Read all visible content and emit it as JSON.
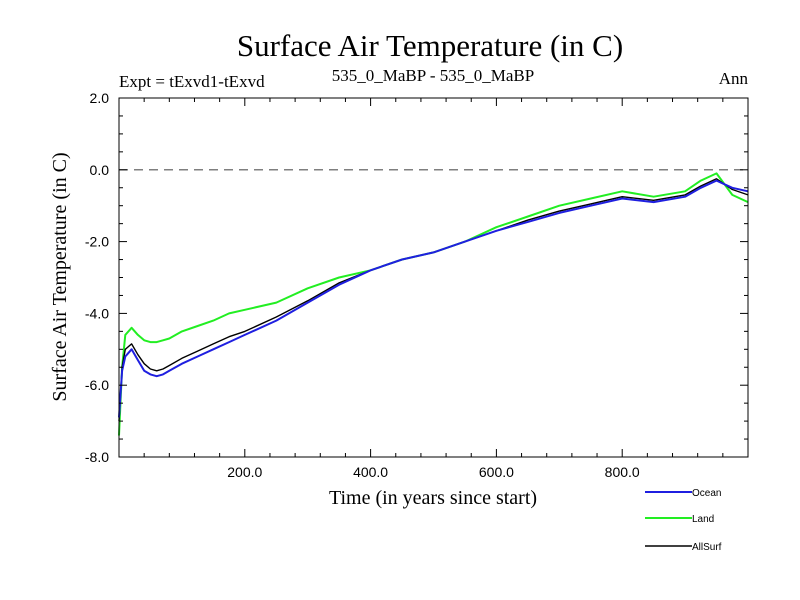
{
  "chart_data": {
    "type": "line",
    "title": "Surface Air Temperature (in C)",
    "subtitle_left": "Expt = tExvd1-tExvd",
    "subtitle_center": "535_0_MaBP - 535_0_MaBP",
    "subtitle_right": "Ann",
    "xlabel": "Time (in years since start)",
    "ylabel": "Surface Air Temperature (in C)",
    "xlim": [
      0,
      1000
    ],
    "ylim": [
      -8.0,
      2.0
    ],
    "x_ticks": [
      200,
      400,
      600,
      800
    ],
    "x_tick_labels": [
      "200.0",
      "400.0",
      "600.0",
      "800.0"
    ],
    "y_ticks": [
      -8,
      -6,
      -4,
      -2,
      0,
      2
    ],
    "y_tick_labels": [
      "-8.0",
      "-6.0",
      "-4.0",
      "-2.0",
      "0.0",
      "2.0"
    ],
    "reference_line_y": 0.0,
    "colors": {
      "ocean": "#1f1fe0",
      "land": "#22ee22",
      "allsurf": "#000000",
      "reference": "#555555"
    },
    "series": [
      {
        "name": "Ocean",
        "key": "ocean",
        "x": [
          0,
          5,
          10,
          20,
          30,
          40,
          50,
          60,
          70,
          80,
          100,
          125,
          150,
          175,
          200,
          250,
          300,
          350,
          400,
          450,
          500,
          550,
          600,
          650,
          700,
          750,
          800,
          850,
          900,
          925,
          950,
          975,
          1000
        ],
        "values": [
          -6.9,
          -5.6,
          -5.2,
          -5.0,
          -5.3,
          -5.6,
          -5.7,
          -5.75,
          -5.7,
          -5.6,
          -5.4,
          -5.2,
          -5.0,
          -4.8,
          -4.6,
          -4.2,
          -3.7,
          -3.2,
          -2.8,
          -2.5,
          -2.3,
          -2.0,
          -1.7,
          -1.45,
          -1.2,
          -1.0,
          -0.8,
          -0.9,
          -0.75,
          -0.5,
          -0.3,
          -0.5,
          -0.6
        ]
      },
      {
        "name": "Land",
        "key": "land",
        "x": [
          0,
          5,
          10,
          20,
          30,
          40,
          50,
          60,
          70,
          80,
          100,
          125,
          150,
          175,
          200,
          250,
          300,
          350,
          400,
          450,
          500,
          550,
          600,
          650,
          700,
          750,
          800,
          850,
          900,
          925,
          950,
          975,
          1000
        ],
        "values": [
          -7.4,
          -5.5,
          -4.6,
          -4.4,
          -4.6,
          -4.75,
          -4.8,
          -4.8,
          -4.75,
          -4.7,
          -4.5,
          -4.35,
          -4.2,
          -4.0,
          -3.9,
          -3.7,
          -3.3,
          -3.0,
          -2.8,
          -2.5,
          -2.3,
          -2.0,
          -1.6,
          -1.3,
          -1.0,
          -0.8,
          -0.6,
          -0.75,
          -0.6,
          -0.3,
          -0.1,
          -0.7,
          -0.9
        ]
      },
      {
        "name": "AllSurf",
        "key": "allsurf",
        "x": [
          0,
          5,
          10,
          20,
          30,
          40,
          50,
          60,
          70,
          80,
          100,
          125,
          150,
          175,
          200,
          250,
          300,
          350,
          400,
          450,
          500,
          550,
          600,
          650,
          700,
          750,
          800,
          850,
          900,
          925,
          950,
          975,
          1000
        ],
        "values": [
          -7.0,
          -5.5,
          -5.0,
          -4.85,
          -5.15,
          -5.4,
          -5.55,
          -5.6,
          -5.55,
          -5.45,
          -5.25,
          -5.05,
          -4.85,
          -4.65,
          -4.5,
          -4.1,
          -3.65,
          -3.15,
          -2.8,
          -2.5,
          -2.3,
          -2.0,
          -1.7,
          -1.4,
          -1.15,
          -0.95,
          -0.75,
          -0.85,
          -0.7,
          -0.45,
          -0.25,
          -0.55,
          -0.7
        ]
      }
    ],
    "legend": [
      {
        "label": "Ocean",
        "key": "ocean"
      },
      {
        "label": "Land",
        "key": "land"
      },
      {
        "label": "AllSurf",
        "key": "allsurf"
      }
    ],
    "legend_position": "bottom-right"
  }
}
